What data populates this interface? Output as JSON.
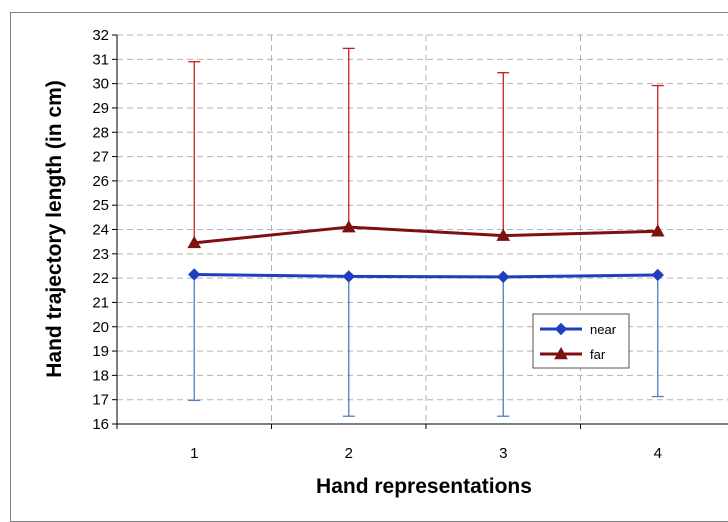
{
  "chart_data": {
    "type": "line",
    "categories": [
      "1",
      "2",
      "3",
      "4"
    ],
    "xlabel": "Hand representations",
    "ylabel": "Hand trajectory length (in cm)",
    "ylim": [
      16,
      32
    ],
    "yticks": [
      16,
      17,
      18,
      19,
      20,
      21,
      22,
      23,
      24,
      25,
      26,
      27,
      28,
      29,
      30,
      31,
      32
    ],
    "grid": true,
    "legend_position": "right",
    "series": [
      {
        "name": "near",
        "color": "#1f3fbf",
        "error_color": "#4a7fbf",
        "marker": "diamond",
        "values": [
          22.15,
          22.07,
          22.05,
          22.13
        ],
        "error_lower": [
          16.97,
          16.32,
          16.32,
          17.13
        ]
      },
      {
        "name": "far",
        "color": "#7f1010",
        "error_color": "#c02020",
        "marker": "triangle",
        "values": [
          23.45,
          24.1,
          23.75,
          23.93
        ],
        "error_upper": [
          30.9,
          31.45,
          30.45,
          29.92
        ]
      }
    ]
  }
}
